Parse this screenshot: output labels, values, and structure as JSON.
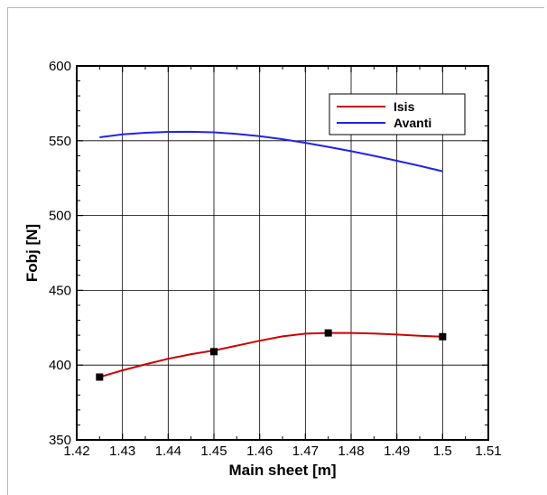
{
  "chart_data": {
    "type": "line",
    "xlabel": "Main sheet [m]",
    "ylabel": "Fobj [N]",
    "xlim": [
      1.42,
      1.51
    ],
    "ylim": [
      350,
      600
    ],
    "xticks": [
      1.42,
      1.43,
      1.44,
      1.45,
      1.46,
      1.47,
      1.48,
      1.49,
      1.5,
      1.51
    ],
    "xtick_labels": [
      "1.42",
      "1.43",
      "1.44",
      "1.45",
      "1.46",
      "1.47",
      "1.48",
      "1.49",
      "1.5",
      "1.51"
    ],
    "yticks": [
      350,
      400,
      450,
      500,
      550,
      600
    ],
    "ytick_labels": [
      "350",
      "400",
      "450",
      "500",
      "550",
      "600"
    ],
    "grid": true,
    "legend_position": "top-right",
    "series": [
      {
        "name": "Isis",
        "color": "#cc0000",
        "x": [
          1.425,
          1.43,
          1.435,
          1.44,
          1.445,
          1.45,
          1.455,
          1.46,
          1.465,
          1.47,
          1.475,
          1.48,
          1.485,
          1.49,
          1.495,
          1.5
        ],
        "y": [
          392.0,
          396.5,
          400.5,
          404.2,
          407.3,
          409.8,
          413.0,
          416.3,
          419.2,
          421.0,
          421.5,
          421.5,
          421.1,
          420.4,
          419.6,
          419.0
        ],
        "markers": [
          {
            "x": 1.425,
            "y": 392
          },
          {
            "x": 1.45,
            "y": 409
          },
          {
            "x": 1.475,
            "y": 421.5
          },
          {
            "x": 1.5,
            "y": 419
          }
        ]
      },
      {
        "name": "Avanti",
        "color": "#2222ee",
        "x": [
          1.425,
          1.43,
          1.435,
          1.44,
          1.445,
          1.45,
          1.455,
          1.46,
          1.465,
          1.47,
          1.475,
          1.48,
          1.485,
          1.49,
          1.495,
          1.5
        ],
        "y": [
          552.3,
          554.2,
          555.3,
          555.9,
          556.0,
          555.6,
          554.6,
          553.0,
          551.0,
          548.6,
          545.9,
          543.0,
          539.9,
          536.6,
          533.2,
          529.6
        ]
      }
    ]
  }
}
